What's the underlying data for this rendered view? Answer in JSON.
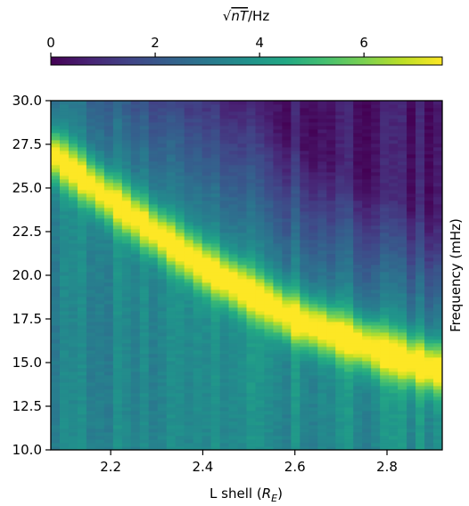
{
  "chart_data": {
    "type": "heatmap",
    "xlabel": "L shell ($R_E$)",
    "xlabel_main": "L shell (",
    "xlabel_sym": "R",
    "xlabel_sub": "E",
    "xlabel_close": ")",
    "ylabel": "Frequency (mHz)",
    "colorbar_label": "√nT/Hz",
    "colorbar_label_radicand": "nT",
    "colorbar_label_unit": "/Hz",
    "colorbar_ticks": [
      "0",
      "2",
      "4",
      "6"
    ],
    "colorbar_range": [
      0,
      7.5
    ],
    "colormap": "viridis",
    "xlim": [
      2.07,
      2.92
    ],
    "ylim": [
      10.0,
      30.0
    ],
    "x_ticks": [
      "2.2",
      "2.4",
      "2.6",
      "2.8"
    ],
    "y_ticks": [
      "10.0",
      "12.5",
      "15.0",
      "17.5",
      "20.0",
      "22.5",
      "25.0",
      "27.5",
      "30.0"
    ],
    "ridge": {
      "description_points": [
        {
          "L": 2.07,
          "f": 27.0
        },
        {
          "L": 2.2,
          "f": 24.3
        },
        {
          "L": 2.4,
          "f": 20.5
        },
        {
          "L": 2.6,
          "f": 17.5
        },
        {
          "L": 2.8,
          "f": 15.5
        },
        {
          "L": 2.92,
          "f": 14.5
        }
      ],
      "peak_value": 7.4
    }
  }
}
